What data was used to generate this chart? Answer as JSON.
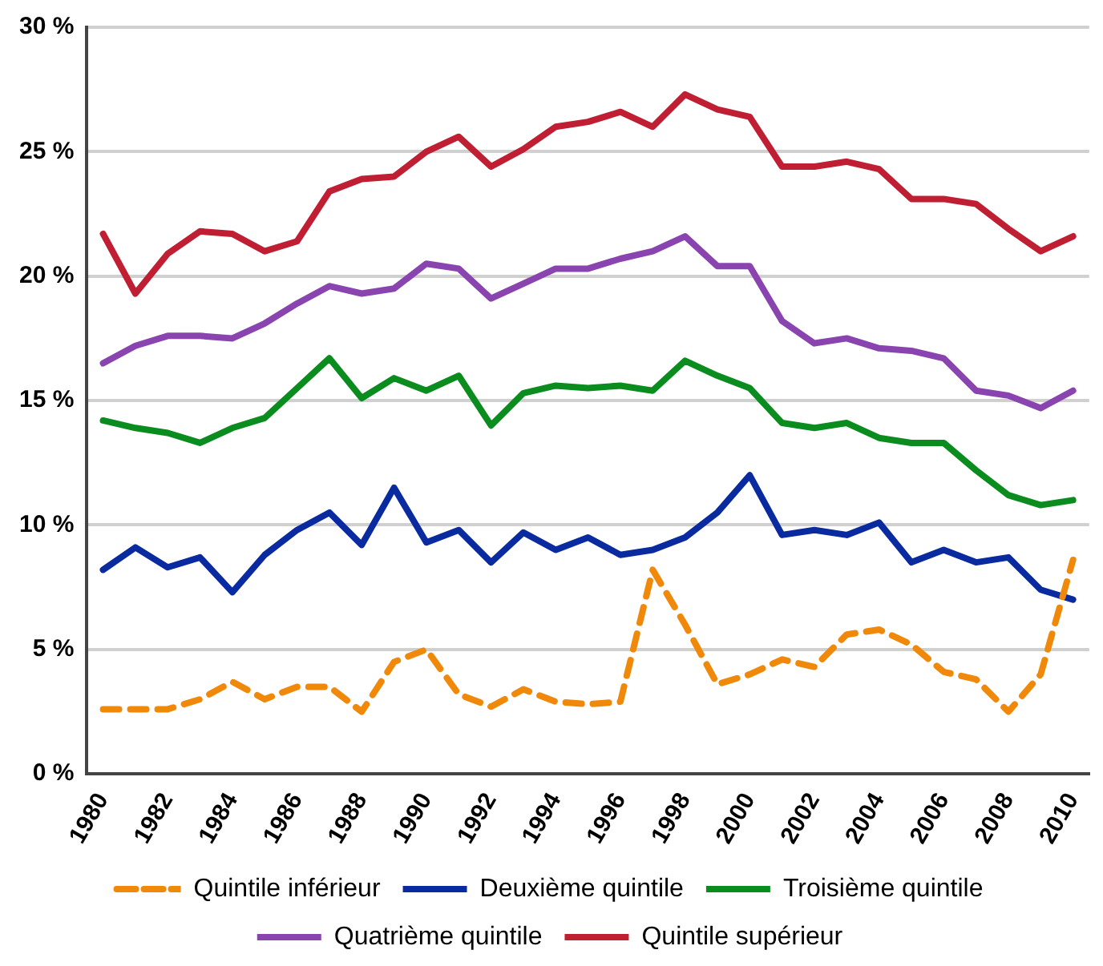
{
  "chart_data": {
    "type": "line",
    "categories": [
      "1980",
      null,
      "1982",
      null,
      "1984",
      null,
      "1986",
      null,
      "1988",
      null,
      "1990",
      null,
      "1992",
      null,
      "1994",
      null,
      "1996",
      null,
      "1998",
      null,
      "2000",
      null,
      "2002",
      null,
      "2004",
      null,
      "2006",
      null,
      "2008",
      null,
      "2010"
    ],
    "series": [
      {
        "name": "Quintile inférieur",
        "color": "#f0890a",
        "line_style": "dashed",
        "values": [
          2.6,
          2.6,
          2.6,
          3.0,
          3.7,
          3.0,
          3.5,
          3.5,
          2.5,
          4.5,
          5.0,
          3.2,
          2.7,
          3.4,
          2.9,
          2.8,
          2.9,
          8.2,
          6.0,
          3.6,
          4.0,
          4.6,
          4.3,
          5.6,
          5.8,
          5.2,
          4.1,
          3.8,
          2.5,
          4.0,
          8.6
        ]
      },
      {
        "name": "Deuxième quintile",
        "color": "#0a2aa0",
        "values": [
          8.2,
          9.1,
          8.3,
          8.7,
          7.3,
          8.8,
          9.8,
          10.5,
          9.2,
          11.5,
          9.3,
          9.8,
          8.5,
          9.7,
          9.0,
          9.5,
          8.8,
          9.0,
          9.5,
          10.5,
          12.0,
          9.6,
          9.8,
          9.6,
          10.1,
          8.5,
          9.0,
          8.5,
          8.7,
          7.4,
          7.0
        ]
      },
      {
        "name": "Troisième quintile",
        "color": "#0a8c1e",
        "values": [
          14.2,
          13.9,
          13.7,
          13.3,
          13.9,
          14.3,
          15.5,
          16.7,
          15.1,
          15.9,
          15.4,
          16.0,
          14.0,
          15.3,
          15.6,
          15.5,
          15.6,
          15.4,
          16.6,
          16.0,
          15.5,
          14.1,
          13.9,
          14.1,
          13.5,
          13.3,
          13.3,
          12.2,
          11.2,
          10.8,
          11.0
        ]
      },
      {
        "name": "Quatrième quintile",
        "color": "#8a44b0",
        "values": [
          16.5,
          17.2,
          17.6,
          17.6,
          17.5,
          18.1,
          18.9,
          19.6,
          19.3,
          19.5,
          20.5,
          20.3,
          19.1,
          19.7,
          20.3,
          20.3,
          20.7,
          21.0,
          21.6,
          20.4,
          20.4,
          18.2,
          17.3,
          17.5,
          17.1,
          17.0,
          16.7,
          15.4,
          15.2,
          14.7,
          15.4
        ]
      },
      {
        "name": "Quintile supérieur",
        "color": "#c01e32",
        "values": [
          21.7,
          19.3,
          20.9,
          21.8,
          21.7,
          21.0,
          21.4,
          23.4,
          23.9,
          24.0,
          25.0,
          25.6,
          24.4,
          25.1,
          26.0,
          26.2,
          26.6,
          26.0,
          27.3,
          26.7,
          26.4,
          24.4,
          24.4,
          24.6,
          24.3,
          23.1,
          23.1,
          22.9,
          21.9,
          21.0,
          21.6
        ]
      }
    ],
    "ylim": [
      0,
      30
    ],
    "yticks": [
      {
        "value": 0,
        "label": "0 %"
      },
      {
        "value": 5,
        "label": "5 %"
      },
      {
        "value": 10,
        "label": "10 %"
      },
      {
        "value": 15,
        "label": "15 %"
      },
      {
        "value": 20,
        "label": "20 %"
      },
      {
        "value": 25,
        "label": "25 %"
      },
      {
        "value": 30,
        "label": "30 %"
      }
    ],
    "grid": "y",
    "legend": "bottom",
    "marker": "none",
    "line_style": "solid"
  }
}
